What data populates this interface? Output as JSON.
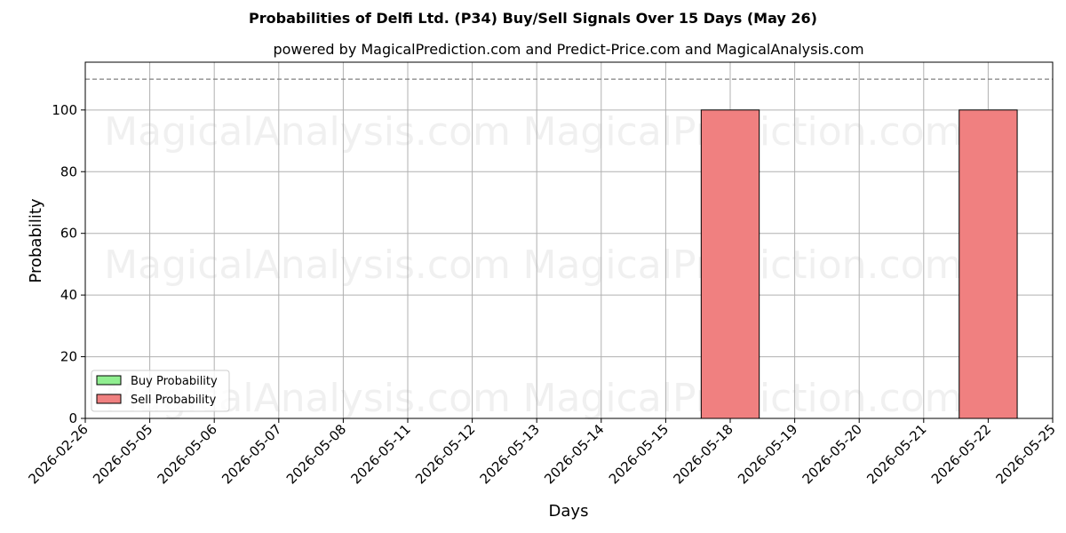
{
  "chart_data": {
    "type": "bar",
    "title": "Probabilities of Delfi Ltd. (P34) Buy/Sell Signals Over 15 Days (May 26)",
    "subtitle": "powered by MagicalPrediction.com and Predict-Price.com and MagicalAnalysis.com",
    "xlabel": "Days",
    "ylabel": "Probability",
    "categories": [
      "2026-02-26",
      "2026-05-05",
      "2026-05-06",
      "2026-05-07",
      "2026-05-08",
      "2026-05-11",
      "2026-05-12",
      "2026-05-13",
      "2026-05-14",
      "2026-05-15",
      "2026-05-18",
      "2026-05-19",
      "2026-05-20",
      "2026-05-21",
      "2026-05-22",
      "2026-05-25"
    ],
    "series": [
      {
        "name": "Buy Probability",
        "color": "#90ee90",
        "values": [
          0,
          0,
          0,
          0,
          0,
          0,
          0,
          0,
          0,
          0,
          0,
          0,
          0,
          0,
          0,
          0
        ]
      },
      {
        "name": "Sell Probability",
        "color": "#f08080",
        "values": [
          0,
          0,
          0,
          0,
          0,
          0,
          0,
          0,
          0,
          0,
          100,
          0,
          0,
          0,
          100,
          0
        ]
      }
    ],
    "ylim": [
      0,
      115.5
    ],
    "yticks": [
      0,
      20,
      40,
      60,
      80,
      100
    ],
    "reference_line": {
      "y": 110,
      "style": "dashed",
      "color": "#808080"
    },
    "grid": true,
    "legend_position": "lower-left",
    "watermarks": [
      "MagicalAnalysis.com",
      "MagicalPrediction.com",
      "MagicalAnalysis.com",
      "MagicalPrediction.com",
      "MagicalAnalysis.com",
      "MagicalPrediction.com"
    ]
  }
}
